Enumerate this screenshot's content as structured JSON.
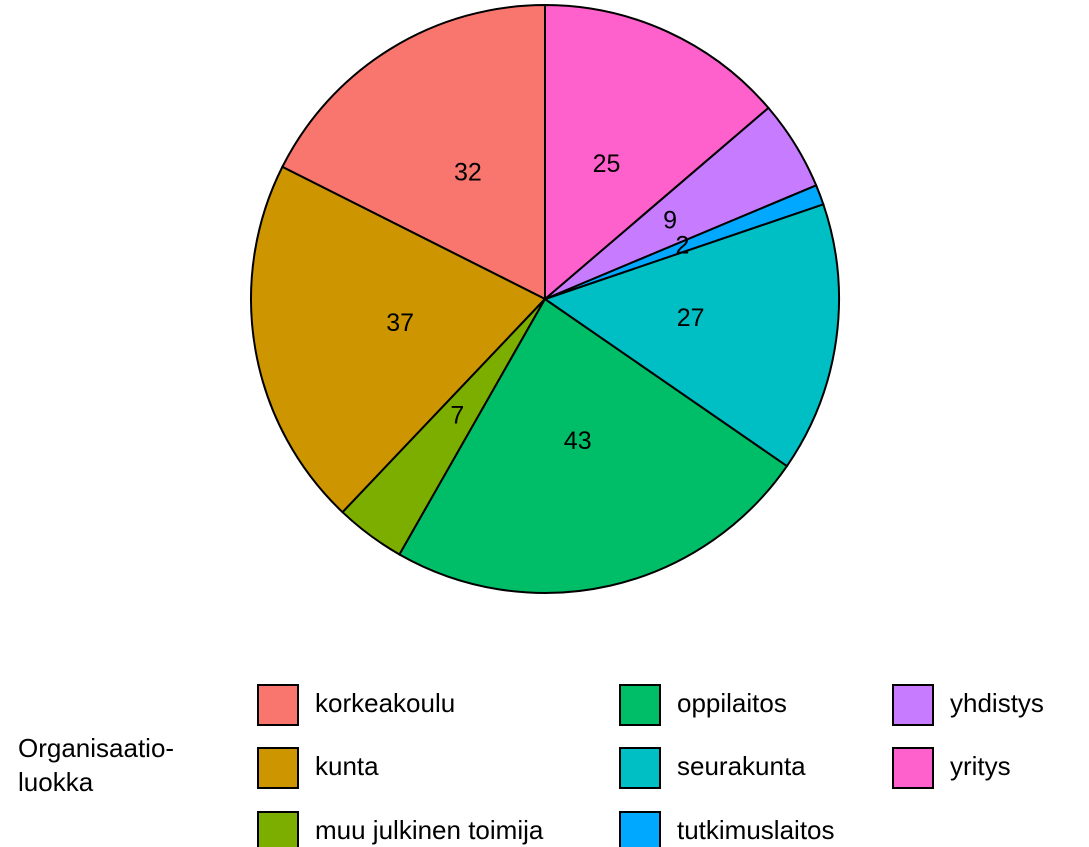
{
  "chart_data": {
    "type": "pie",
    "legend_title": "Organisaatio-\nluokka",
    "categories": [
      "korkeakoulu",
      "kunta",
      "muu julkinen toimija",
      "oppilaitos",
      "seurakunta",
      "tutkimuslaitos",
      "yhdistys",
      "yritys"
    ],
    "values": [
      32,
      37,
      7,
      43,
      27,
      2,
      9,
      25
    ],
    "colors": [
      "#F8766D",
      "#CD9600",
      "#7CAE00",
      "#00BE67",
      "#00BFC4",
      "#00A9FF",
      "#C77CFF",
      "#FF61CC"
    ],
    "legend": "bottom"
  }
}
